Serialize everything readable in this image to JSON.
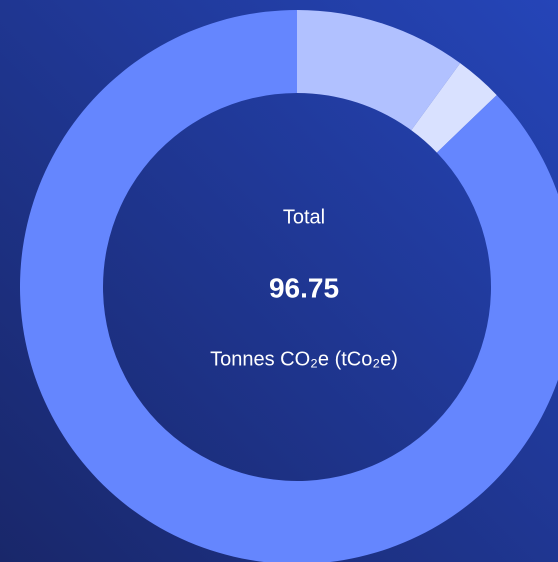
{
  "chart_data": {
    "type": "donut",
    "center_label": "Total",
    "total": 96.75,
    "unit_label": "Tonnes CO₂e (tCo₂e)",
    "values": [
      9.7,
      2.7,
      84.35
    ],
    "colors": [
      "#b1c1ff",
      "#d9e1ff",
      "#6586fe"
    ]
  }
}
